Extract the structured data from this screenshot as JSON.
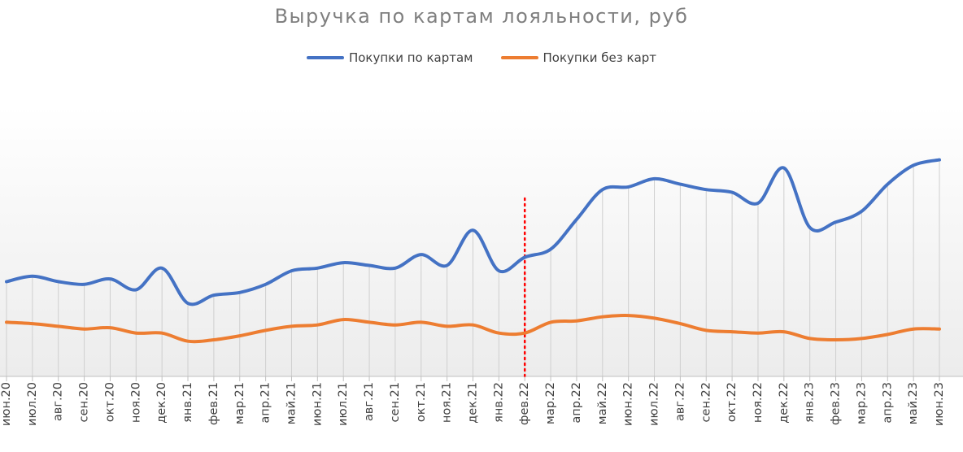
{
  "chart_data": {
    "type": "line",
    "title": "Выручка по картам лояльности, руб",
    "xlabel": "",
    "ylabel": "",
    "legend_position": "top",
    "grid": "vertical",
    "x": [
      "июн.20",
      "июл.20",
      "авг.20",
      "сен.20",
      "окт.20",
      "ноя.20",
      "дек.20",
      "янв.21",
      "фев.21",
      "мар.21",
      "апр.21",
      "май.21",
      "июн.21",
      "июл.21",
      "авг.21",
      "сен.21",
      "окт.21",
      "ноя.21",
      "дек.21",
      "янв.22",
      "фев.22",
      "мар.22",
      "апр.22",
      "май.22",
      "июн.22",
      "июл.22",
      "авг.22",
      "сен.22",
      "окт.22",
      "ноя.22",
      "дек.22",
      "янв.23",
      "фев.23",
      "мар.23",
      "апр.23",
      "май.23",
      "июн.23"
    ],
    "series": [
      {
        "name": "Покупки по картам",
        "color": "#4472c4",
        "values": [
          35,
          37,
          35,
          34,
          36,
          32,
          40,
          27,
          30,
          31,
          34,
          39,
          40,
          42,
          41,
          40,
          45,
          41,
          54,
          39,
          44,
          47,
          58,
          69,
          70,
          73,
          71,
          69,
          68,
          64,
          77,
          55,
          57,
          61,
          71,
          78,
          80
        ]
      },
      {
        "name": "Покупки без карт",
        "color": "#ed7d31",
        "values": [
          20,
          19.5,
          18.5,
          17.5,
          18,
          16,
          16,
          13,
          13.5,
          15,
          17,
          18.5,
          19,
          21,
          20,
          19,
          20,
          18.5,
          19,
          16,
          16,
          20,
          20.5,
          22,
          22.5,
          21.5,
          19.5,
          17,
          16.5,
          16,
          16.5,
          14,
          13.5,
          14,
          15.5,
          17.5,
          17.5
        ]
      }
    ],
    "ylim": [
      0,
      100
    ],
    "annotation": {
      "type": "vertical-dotted-line",
      "at": "фев.22",
      "color": "#ff0000"
    }
  }
}
